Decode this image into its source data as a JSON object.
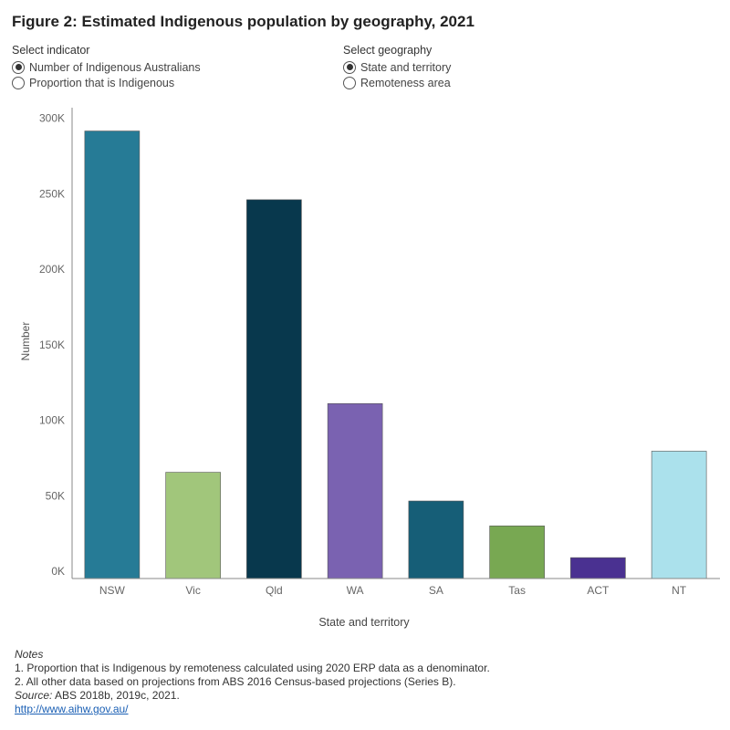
{
  "title": "Figure 2: Estimated Indigenous population by geography, 2021",
  "indicator": {
    "label": "Select indicator",
    "options": [
      "Number of Indigenous Australians",
      "Proportion that is Indigenous"
    ],
    "selected": 0
  },
  "geography": {
    "label": "Select geography",
    "options": [
      "State and territory",
      "Remoteness area"
    ],
    "selected": 0
  },
  "chart_data": {
    "type": "bar",
    "title": "",
    "xlabel": "State and territory",
    "ylabel": "Number",
    "categories": [
      "NSW",
      "Vic",
      "Qld",
      "WA",
      "SA",
      "Tas",
      "ACT",
      "NT"
    ],
    "values": [
      291500,
      65500,
      246000,
      111000,
      46500,
      30000,
      9000,
      79500
    ],
    "colors": [
      "#267b96",
      "#a1c67b",
      "#08384d",
      "#7a62b1",
      "#165e77",
      "#78a852",
      "#4a3191",
      "#abe1ec"
    ],
    "ylim": [
      0,
      300000
    ],
    "yticks": [
      0,
      50000,
      100000,
      150000,
      200000,
      250000,
      300000
    ],
    "ytick_labels": [
      "0K",
      "50K",
      "100K",
      "150K",
      "200K",
      "250K",
      "300K"
    ],
    "grid": false
  },
  "notes": {
    "heading": "Notes",
    "lines": [
      "1. Proportion that is Indigenous by remoteness calculated using 2020 ERP data as a denominator.",
      "2. All other data based on projections from ABS 2016 Census-based projections (Series B)."
    ],
    "source_label": "Source:",
    "source_text": " ABS 2018b, 2019c, 2021.",
    "link": "http://www.aihw.gov.au/"
  }
}
